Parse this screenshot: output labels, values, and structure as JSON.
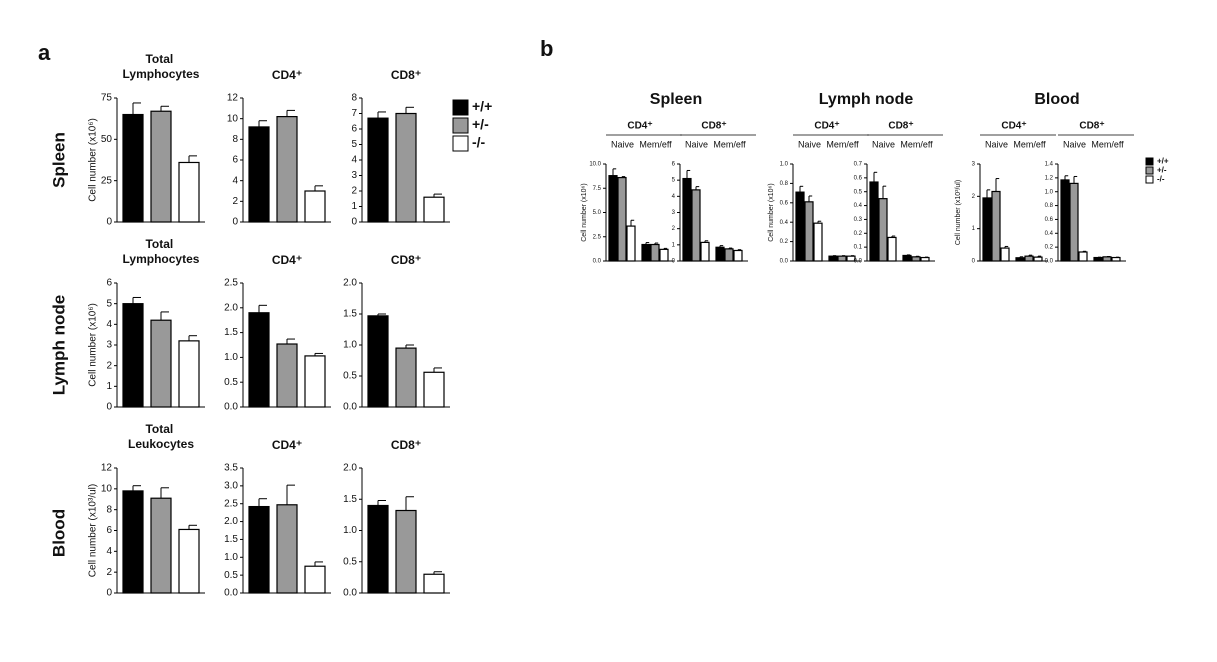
{
  "panel_a": {
    "label": "a",
    "row_labels": [
      "Spleen",
      "Lymph node",
      "Blood"
    ]
  },
  "panel_b": {
    "label": "b",
    "headers": [
      "Spleen",
      "Lymph node",
      "Blood"
    ]
  },
  "chart_data": [
    {
      "type": "bar",
      "title": "Total Lymphocytes",
      "ylabel": "Cell number (x10⁶)",
      "categories": [
        null
      ],
      "ylim": [
        0,
        75
      ],
      "yticks": [
        0,
        25,
        50,
        75
      ],
      "series": [
        {
          "name": "+/+",
          "color": "#000000",
          "values": [
            65
          ],
          "errors": [
            7
          ]
        },
        {
          "name": "+/-",
          "color": "#999999",
          "values": [
            67
          ],
          "errors": [
            3
          ]
        },
        {
          "name": "-/-",
          "color": "#ffffff",
          "values": [
            36
          ],
          "errors": [
            4
          ]
        }
      ]
    },
    {
      "type": "bar",
      "title": "CD4⁺",
      "categories": [
        null
      ],
      "ylim": [
        0,
        12
      ],
      "yticks": [
        0,
        2,
        4,
        6,
        8,
        10,
        12
      ],
      "series": [
        {
          "name": "+/+",
          "color": "#000000",
          "values": [
            9.2
          ],
          "errors": [
            0.6
          ]
        },
        {
          "name": "+/-",
          "color": "#999999",
          "values": [
            10.2
          ],
          "errors": [
            0.6
          ]
        },
        {
          "name": "-/-",
          "color": "#ffffff",
          "values": [
            3.0
          ],
          "errors": [
            0.5
          ]
        }
      ]
    },
    {
      "type": "bar",
      "title": "CD8⁺",
      "categories": [
        null
      ],
      "ylim": [
        0,
        8
      ],
      "yticks": [
        0,
        1,
        2,
        3,
        4,
        5,
        6,
        7,
        8
      ],
      "series": [
        {
          "name": "+/+",
          "color": "#000000",
          "values": [
            6.7
          ],
          "errors": [
            0.4
          ]
        },
        {
          "name": "+/-",
          "color": "#999999",
          "values": [
            7.0
          ],
          "errors": [
            0.4
          ]
        },
        {
          "name": "-/-",
          "color": "#ffffff",
          "values": [
            1.6
          ],
          "errors": [
            0.2
          ]
        }
      ]
    },
    {
      "type": "bar",
      "title": "Total Lymphocytes",
      "ylabel": "Cell number (x10⁶)",
      "categories": [
        null
      ],
      "ylim": [
        0,
        6
      ],
      "yticks": [
        0,
        1,
        2,
        3,
        4,
        5,
        6
      ],
      "series": [
        {
          "name": "+/+",
          "color": "#000000",
          "values": [
            5.0
          ],
          "errors": [
            0.3
          ]
        },
        {
          "name": "+/-",
          "color": "#999999",
          "values": [
            4.2
          ],
          "errors": [
            0.4
          ]
        },
        {
          "name": "-/-",
          "color": "#ffffff",
          "values": [
            3.2
          ],
          "errors": [
            0.25
          ]
        }
      ]
    },
    {
      "type": "bar",
      "title": "CD4⁺",
      "categories": [
        null
      ],
      "ylim": [
        0,
        2.5
      ],
      "yticks": [
        {
          "value": 0,
          "label": "0.0"
        },
        {
          "value": 0.5,
          "label": "0.5"
        },
        {
          "value": 1,
          "label": "1.0"
        },
        {
          "value": 1.5,
          "label": "1.5"
        },
        {
          "value": 2,
          "label": "2.0"
        },
        {
          "value": 2.5,
          "label": "2.5"
        }
      ],
      "series": [
        {
          "name": "+/+",
          "color": "#000000",
          "values": [
            1.9
          ],
          "errors": [
            0.15
          ]
        },
        {
          "name": "+/-",
          "color": "#999999",
          "values": [
            1.27
          ],
          "errors": [
            0.1
          ]
        },
        {
          "name": "-/-",
          "color": "#ffffff",
          "values": [
            1.03
          ],
          "errors": [
            0.05
          ]
        }
      ]
    },
    {
      "type": "bar",
      "title": "CD8⁺",
      "categories": [
        null
      ],
      "ylim": [
        0,
        2
      ],
      "yticks": [
        {
          "value": 0,
          "label": "0.0"
        },
        {
          "value": 0.5,
          "label": "0.5"
        },
        {
          "value": 1,
          "label": "1.0"
        },
        {
          "value": 1.5,
          "label": "1.5"
        },
        {
          "value": 2,
          "label": "2.0"
        }
      ],
      "series": [
        {
          "name": "+/+",
          "color": "#000000",
          "values": [
            1.47
          ],
          "errors": [
            0.03
          ]
        },
        {
          "name": "+/-",
          "color": "#999999",
          "values": [
            0.95
          ],
          "errors": [
            0.05
          ]
        },
        {
          "name": "-/-",
          "color": "#ffffff",
          "values": [
            0.56
          ],
          "errors": [
            0.07
          ]
        }
      ]
    },
    {
      "type": "bar",
      "title": "Total Leukocytes",
      "ylabel": "Cell number (x10³/ul)",
      "categories": [
        null
      ],
      "ylim": [
        0,
        12
      ],
      "yticks": [
        0,
        2,
        4,
        6,
        8,
        10,
        12
      ],
      "series": [
        {
          "name": "+/+",
          "color": "#000000",
          "values": [
            9.8
          ],
          "errors": [
            0.5
          ]
        },
        {
          "name": "+/-",
          "color": "#999999",
          "values": [
            9.1
          ],
          "errors": [
            1.0
          ]
        },
        {
          "name": "-/-",
          "color": "#ffffff",
          "values": [
            6.1
          ],
          "errors": [
            0.4
          ]
        }
      ]
    },
    {
      "type": "bar",
      "title": "CD4⁺",
      "categories": [
        null
      ],
      "ylim": [
        0,
        3.5
      ],
      "yticks": [
        {
          "value": 0,
          "label": "0.0"
        },
        {
          "value": 0.5,
          "label": "0.5"
        },
        {
          "value": 1,
          "label": "1.0"
        },
        {
          "value": 1.5,
          "label": "1.5"
        },
        {
          "value": 2,
          "label": "2.0"
        },
        {
          "value": 2.5,
          "label": "2.5"
        },
        {
          "value": 3,
          "label": "3.0"
        },
        {
          "value": 3.5,
          "label": "3.5"
        }
      ],
      "series": [
        {
          "name": "+/+",
          "color": "#000000",
          "values": [
            2.42
          ],
          "errors": [
            0.22
          ]
        },
        {
          "name": "+/-",
          "color": "#999999",
          "values": [
            2.47
          ],
          "errors": [
            0.55
          ]
        },
        {
          "name": "-/-",
          "color": "#ffffff",
          "values": [
            0.75
          ],
          "errors": [
            0.12
          ]
        }
      ]
    },
    {
      "type": "bar",
      "title": "CD8⁺",
      "categories": [
        null
      ],
      "ylim": [
        0,
        2
      ],
      "yticks": [
        {
          "value": 0,
          "label": "0.0"
        },
        {
          "value": 0.5,
          "label": "0.5"
        },
        {
          "value": 1,
          "label": "1.0"
        },
        {
          "value": 1.5,
          "label": "1.5"
        },
        {
          "value": 2,
          "label": "2.0"
        }
      ],
      "series": [
        {
          "name": "+/+",
          "color": "#000000",
          "values": [
            1.4
          ],
          "errors": [
            0.08
          ]
        },
        {
          "name": "+/-",
          "color": "#999999",
          "values": [
            1.32
          ],
          "errors": [
            0.22
          ]
        },
        {
          "name": "-/-",
          "color": "#ffffff",
          "values": [
            0.3
          ],
          "errors": [
            0.04
          ]
        }
      ]
    },
    {
      "type": "bar",
      "title": "CD4⁺",
      "ylabel": "Cell number (x10⁶)",
      "categories": [
        "Naive",
        "Mem/eff"
      ],
      "ylim": [
        0,
        10
      ],
      "yticks": [
        {
          "value": 0,
          "label": "0.0"
        },
        {
          "value": 2.5,
          "label": "2.5"
        },
        {
          "value": 5,
          "label": "5.0"
        },
        {
          "value": 7.5,
          "label": "7.5"
        },
        {
          "value": 10,
          "label": "10.0"
        }
      ],
      "series": [
        {
          "name": "+/+",
          "color": "#000000",
          "values": [
            8.8,
            1.7
          ],
          "errors": [
            0.7,
            0.2
          ]
        },
        {
          "name": "+/-",
          "color": "#999999",
          "values": [
            8.6,
            1.7
          ],
          "errors": [
            0.1,
            0.15
          ]
        },
        {
          "name": "-/-",
          "color": "#ffffff",
          "values": [
            3.6,
            1.2
          ],
          "errors": [
            0.6,
            0.1
          ]
        }
      ]
    },
    {
      "type": "bar",
      "title": "CD8⁺",
      "categories": [
        "Naive",
        "Mem/eff"
      ],
      "ylim": [
        0,
        6
      ],
      "yticks": [
        0,
        1,
        2,
        3,
        4,
        5,
        6
      ],
      "series": [
        {
          "name": "+/+",
          "color": "#000000",
          "values": [
            5.1,
            0.85
          ],
          "errors": [
            0.5,
            0.1
          ]
        },
        {
          "name": "+/-",
          "color": "#999999",
          "values": [
            4.4,
            0.75
          ],
          "errors": [
            0.2,
            0.05
          ]
        },
        {
          "name": "-/-",
          "color": "#ffffff",
          "values": [
            1.15,
            0.65
          ],
          "errors": [
            0.1,
            0.05
          ]
        }
      ]
    },
    {
      "type": "bar",
      "title": "CD4⁺",
      "ylabel": "Cell number (x10⁶)",
      "categories": [
        "Naive",
        "Mem/eff"
      ],
      "ylim": [
        0,
        1
      ],
      "yticks": [
        {
          "value": 0,
          "label": "0.0"
        },
        {
          "value": 0.2,
          "label": "0.2"
        },
        {
          "value": 0.4,
          "label": "0.4"
        },
        {
          "value": 0.6,
          "label": "0.6"
        },
        {
          "value": 0.8,
          "label": "0.8"
        },
        {
          "value": 1,
          "label": "1.0"
        }
      ],
      "series": [
        {
          "name": "+/+",
          "color": "#000000",
          "values": [
            0.71,
            0.05
          ],
          "errors": [
            0.06,
            0.005
          ]
        },
        {
          "name": "+/-",
          "color": "#999999",
          "values": [
            0.61,
            0.05
          ],
          "errors": [
            0.06,
            0.005
          ]
        },
        {
          "name": "-/-",
          "color": "#ffffff",
          "values": [
            0.39,
            0.05
          ],
          "errors": [
            0.02,
            0.005
          ]
        }
      ]
    },
    {
      "type": "bar",
      "title": "CD8⁺",
      "categories": [
        "Naive",
        "Mem/eff"
      ],
      "ylim": [
        0,
        0.7
      ],
      "yticks": [
        {
          "value": 0,
          "label": "0.0"
        },
        {
          "value": 0.1,
          "label": "0.1"
        },
        {
          "value": 0.2,
          "label": "0.2"
        },
        {
          "value": 0.3,
          "label": "0.3"
        },
        {
          "value": 0.4,
          "label": "0.4"
        },
        {
          "value": 0.5,
          "label": "0.5"
        },
        {
          "value": 0.6,
          "label": "0.6"
        },
        {
          "value": 0.7,
          "label": "0.7"
        }
      ],
      "series": [
        {
          "name": "+/+",
          "color": "#000000",
          "values": [
            0.57,
            0.04
          ],
          "errors": [
            0.07,
            0.004
          ]
        },
        {
          "name": "+/-",
          "color": "#999999",
          "values": [
            0.45,
            0.03
          ],
          "errors": [
            0.09,
            0.004
          ]
        },
        {
          "name": "-/-",
          "color": "#ffffff",
          "values": [
            0.17,
            0.025
          ],
          "errors": [
            0.01,
            0.003
          ]
        }
      ]
    },
    {
      "type": "bar",
      "title": "CD4⁺",
      "ylabel": "Cell number (x10³/ul)",
      "categories": [
        "Naive",
        "Mem/eff"
      ],
      "ylim": [
        0,
        3
      ],
      "yticks": [
        0,
        1,
        2,
        3
      ],
      "series": [
        {
          "name": "+/+",
          "color": "#000000",
          "values": [
            1.95,
            0.1
          ],
          "errors": [
            0.25,
            0.03
          ]
        },
        {
          "name": "+/-",
          "color": "#999999",
          "values": [
            2.15,
            0.15
          ],
          "errors": [
            0.4,
            0.03
          ]
        },
        {
          "name": "-/-",
          "color": "#ffffff",
          "values": [
            0.4,
            0.12
          ],
          "errors": [
            0.05,
            0.03
          ]
        }
      ]
    },
    {
      "type": "bar",
      "title": "CD8⁺",
      "categories": [
        "Naive",
        "Mem/eff"
      ],
      "ylim": [
        0,
        1.4
      ],
      "yticks": [
        {
          "value": 0,
          "label": "0.0"
        },
        {
          "value": 0.2,
          "label": "0.2"
        },
        {
          "value": 0.4,
          "label": "0.4"
        },
        {
          "value": 0.6,
          "label": "0.6"
        },
        {
          "value": 0.8,
          "label": "0.8"
        },
        {
          "value": 1,
          "label": "1.0"
        },
        {
          "value": 1.2,
          "label": "1.2"
        },
        {
          "value": 1.4,
          "label": "1.4"
        }
      ],
      "series": [
        {
          "name": "+/+",
          "color": "#000000",
          "values": [
            1.17,
            0.05
          ],
          "errors": [
            0.06,
            0.005
          ]
        },
        {
          "name": "+/-",
          "color": "#999999",
          "values": [
            1.12,
            0.06
          ],
          "errors": [
            0.1,
            0.005
          ]
        },
        {
          "name": "-/-",
          "color": "#ffffff",
          "values": [
            0.13,
            0.05
          ],
          "errors": [
            0.01,
            0.005
          ]
        }
      ]
    }
  ]
}
